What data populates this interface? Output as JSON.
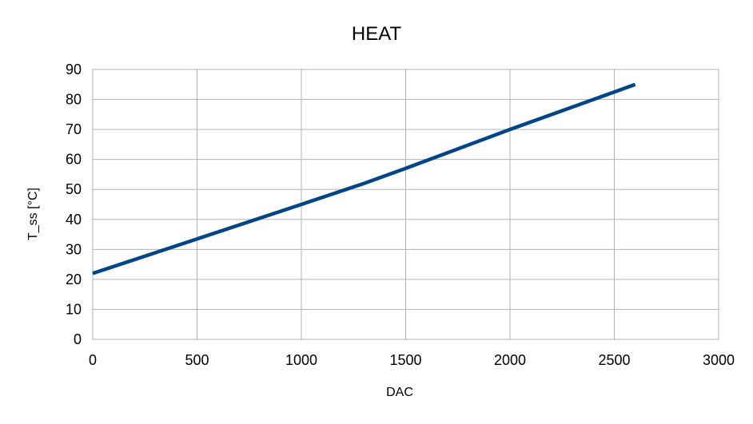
{
  "chart_data": {
    "type": "line",
    "title": "HEAT",
    "xlabel": "DAC",
    "ylabel": "T_ss [°C]",
    "xlim": [
      0,
      3000
    ],
    "ylim": [
      0,
      90
    ],
    "xticks": [
      0,
      500,
      1000,
      1500,
      2000,
      2500,
      3000
    ],
    "yticks": [
      0,
      10,
      20,
      30,
      40,
      50,
      60,
      70,
      80,
      90
    ],
    "grid": true,
    "legend": "none",
    "series": [
      {
        "color": "#004586",
        "x": [
          0,
          500,
          1000,
          1300,
          1500,
          2000,
          2500,
          2600
        ],
        "y": [
          22,
          33.5,
          45,
          52,
          57,
          70,
          82.5,
          85
        ]
      }
    ]
  }
}
